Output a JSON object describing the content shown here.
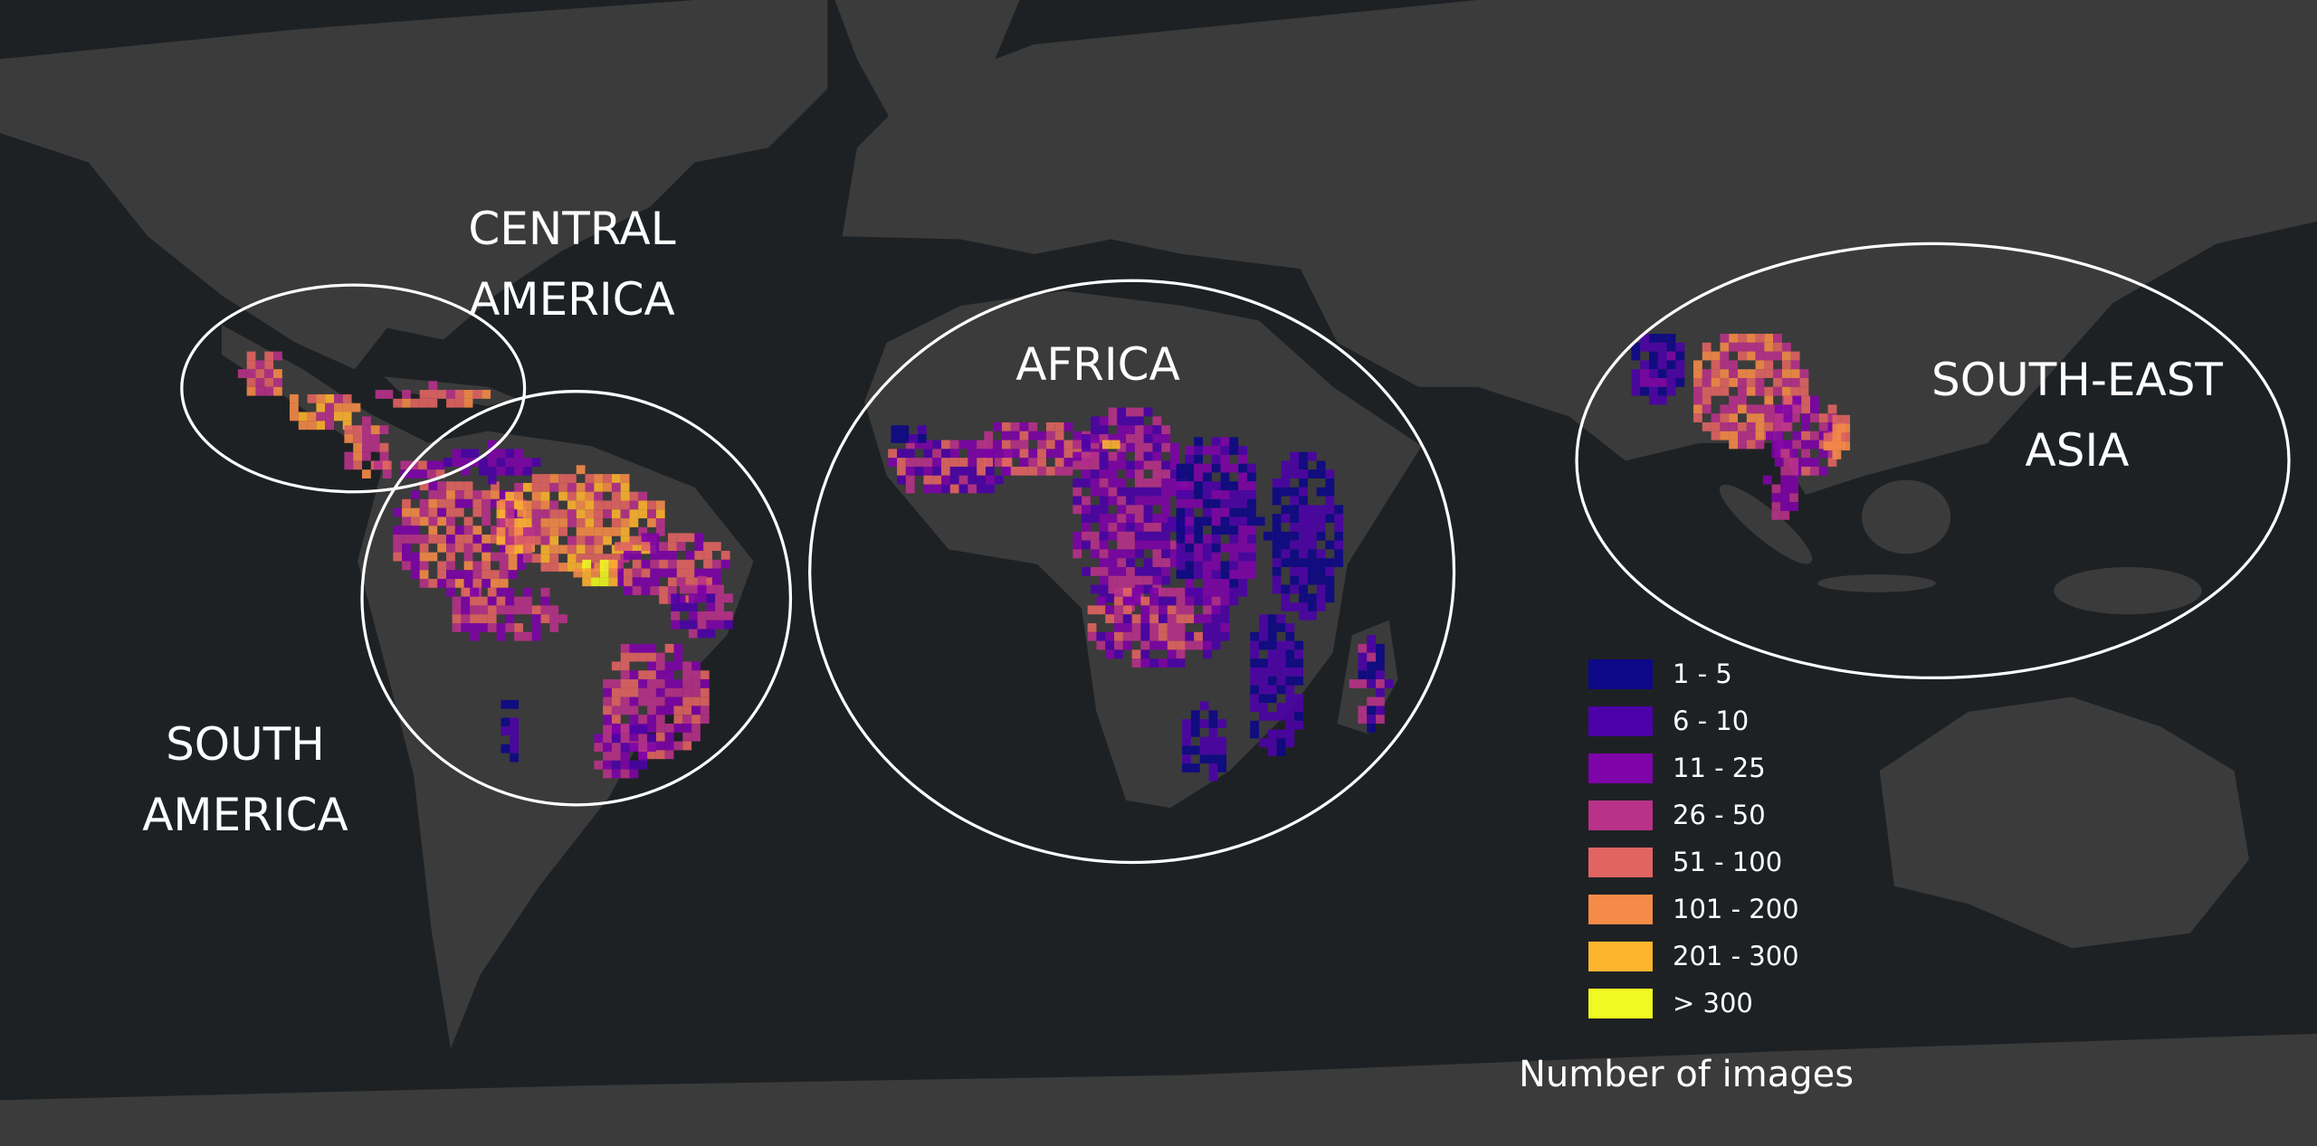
{
  "map": {
    "ocean_color": "#1e2124",
    "land_color": "#3b3b3b",
    "regions": [
      {
        "id": "central-america",
        "lines": [
          "CENTRAL",
          "AMERICA"
        ]
      },
      {
        "id": "south-america",
        "lines": [
          "SOUTH",
          "AMERICA"
        ]
      },
      {
        "id": "africa",
        "lines": [
          "AFRICA"
        ]
      },
      {
        "id": "south-east-asia",
        "lines": [
          "SOUTH-EAST",
          "ASIA"
        ]
      }
    ]
  },
  "legend": {
    "title": "Number of images",
    "bins": [
      {
        "label": "1 - 5",
        "color": "#0d0887"
      },
      {
        "label": "6 - 10",
        "color": "#4c02a8"
      },
      {
        "label": "11 - 25",
        "color": "#7e03a8"
      },
      {
        "label": "26 - 50",
        "color": "#b83289"
      },
      {
        "label": "51 - 100",
        "color": "#e16462"
      },
      {
        "label": "101 - 200",
        "color": "#f58b48"
      },
      {
        "label": "201 - 300",
        "color": "#fdb42f"
      },
      {
        "label": "> 300",
        "color": "#f0f921"
      }
    ]
  }
}
